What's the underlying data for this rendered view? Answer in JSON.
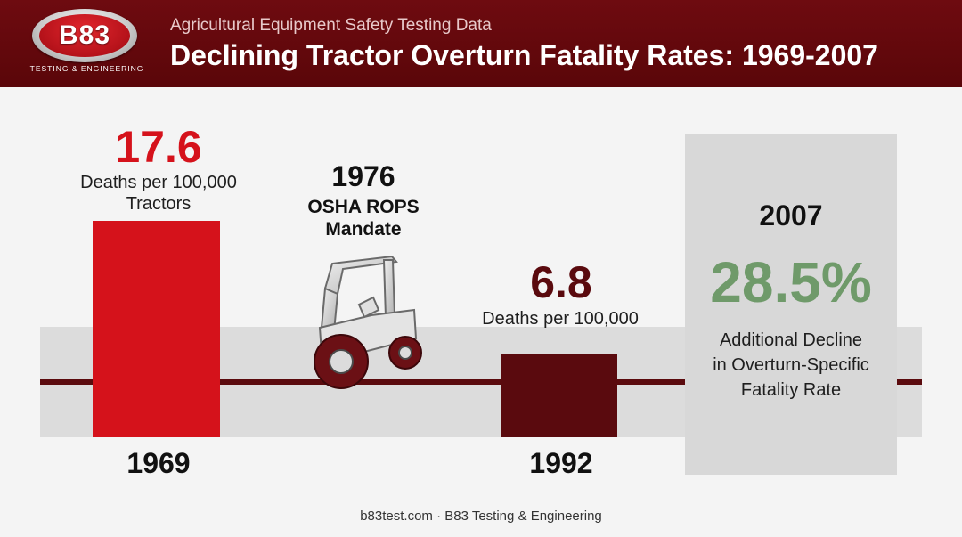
{
  "header": {
    "logo_text": "B83",
    "logo_tagline": "TESTING & ENGINEERING",
    "kicker": "Agricultural Equipment Safety Testing Data",
    "title": "Declining Tractor Overturn Fatality Rates: 1969-2007"
  },
  "chart_data": {
    "type": "bar",
    "title": "Declining Tractor Overturn Fatality Rates: 1969-2007",
    "subtitle": "Agricultural Equipment Safety Testing Data",
    "categories": [
      "1969",
      "1992"
    ],
    "values": [
      17.6,
      6.8
    ],
    "value_labels": [
      "17.6",
      "6.8"
    ],
    "value_units": [
      "Deaths per 100,000 Tractors",
      "Deaths per 100,000"
    ],
    "bar_colors": [
      "#d5121b",
      "#5a0a0e"
    ],
    "annotations": {
      "event_year": "1976",
      "event_title_line1": "OSHA ROPS",
      "event_title_line2": "Mandate",
      "event_icon": "tractor-icon",
      "final_year": "2007",
      "final_value": "28.5%",
      "final_line1": "Additional Decline",
      "final_line2": "in Overturn-Specific",
      "final_line3": "Fatality Rate",
      "final_color": "#6f9a6a"
    },
    "xlabel": "",
    "ylabel": "",
    "grid": false,
    "legend": "none"
  },
  "footer": {
    "text": "b83test.com · B83 Testing & Engineering"
  }
}
